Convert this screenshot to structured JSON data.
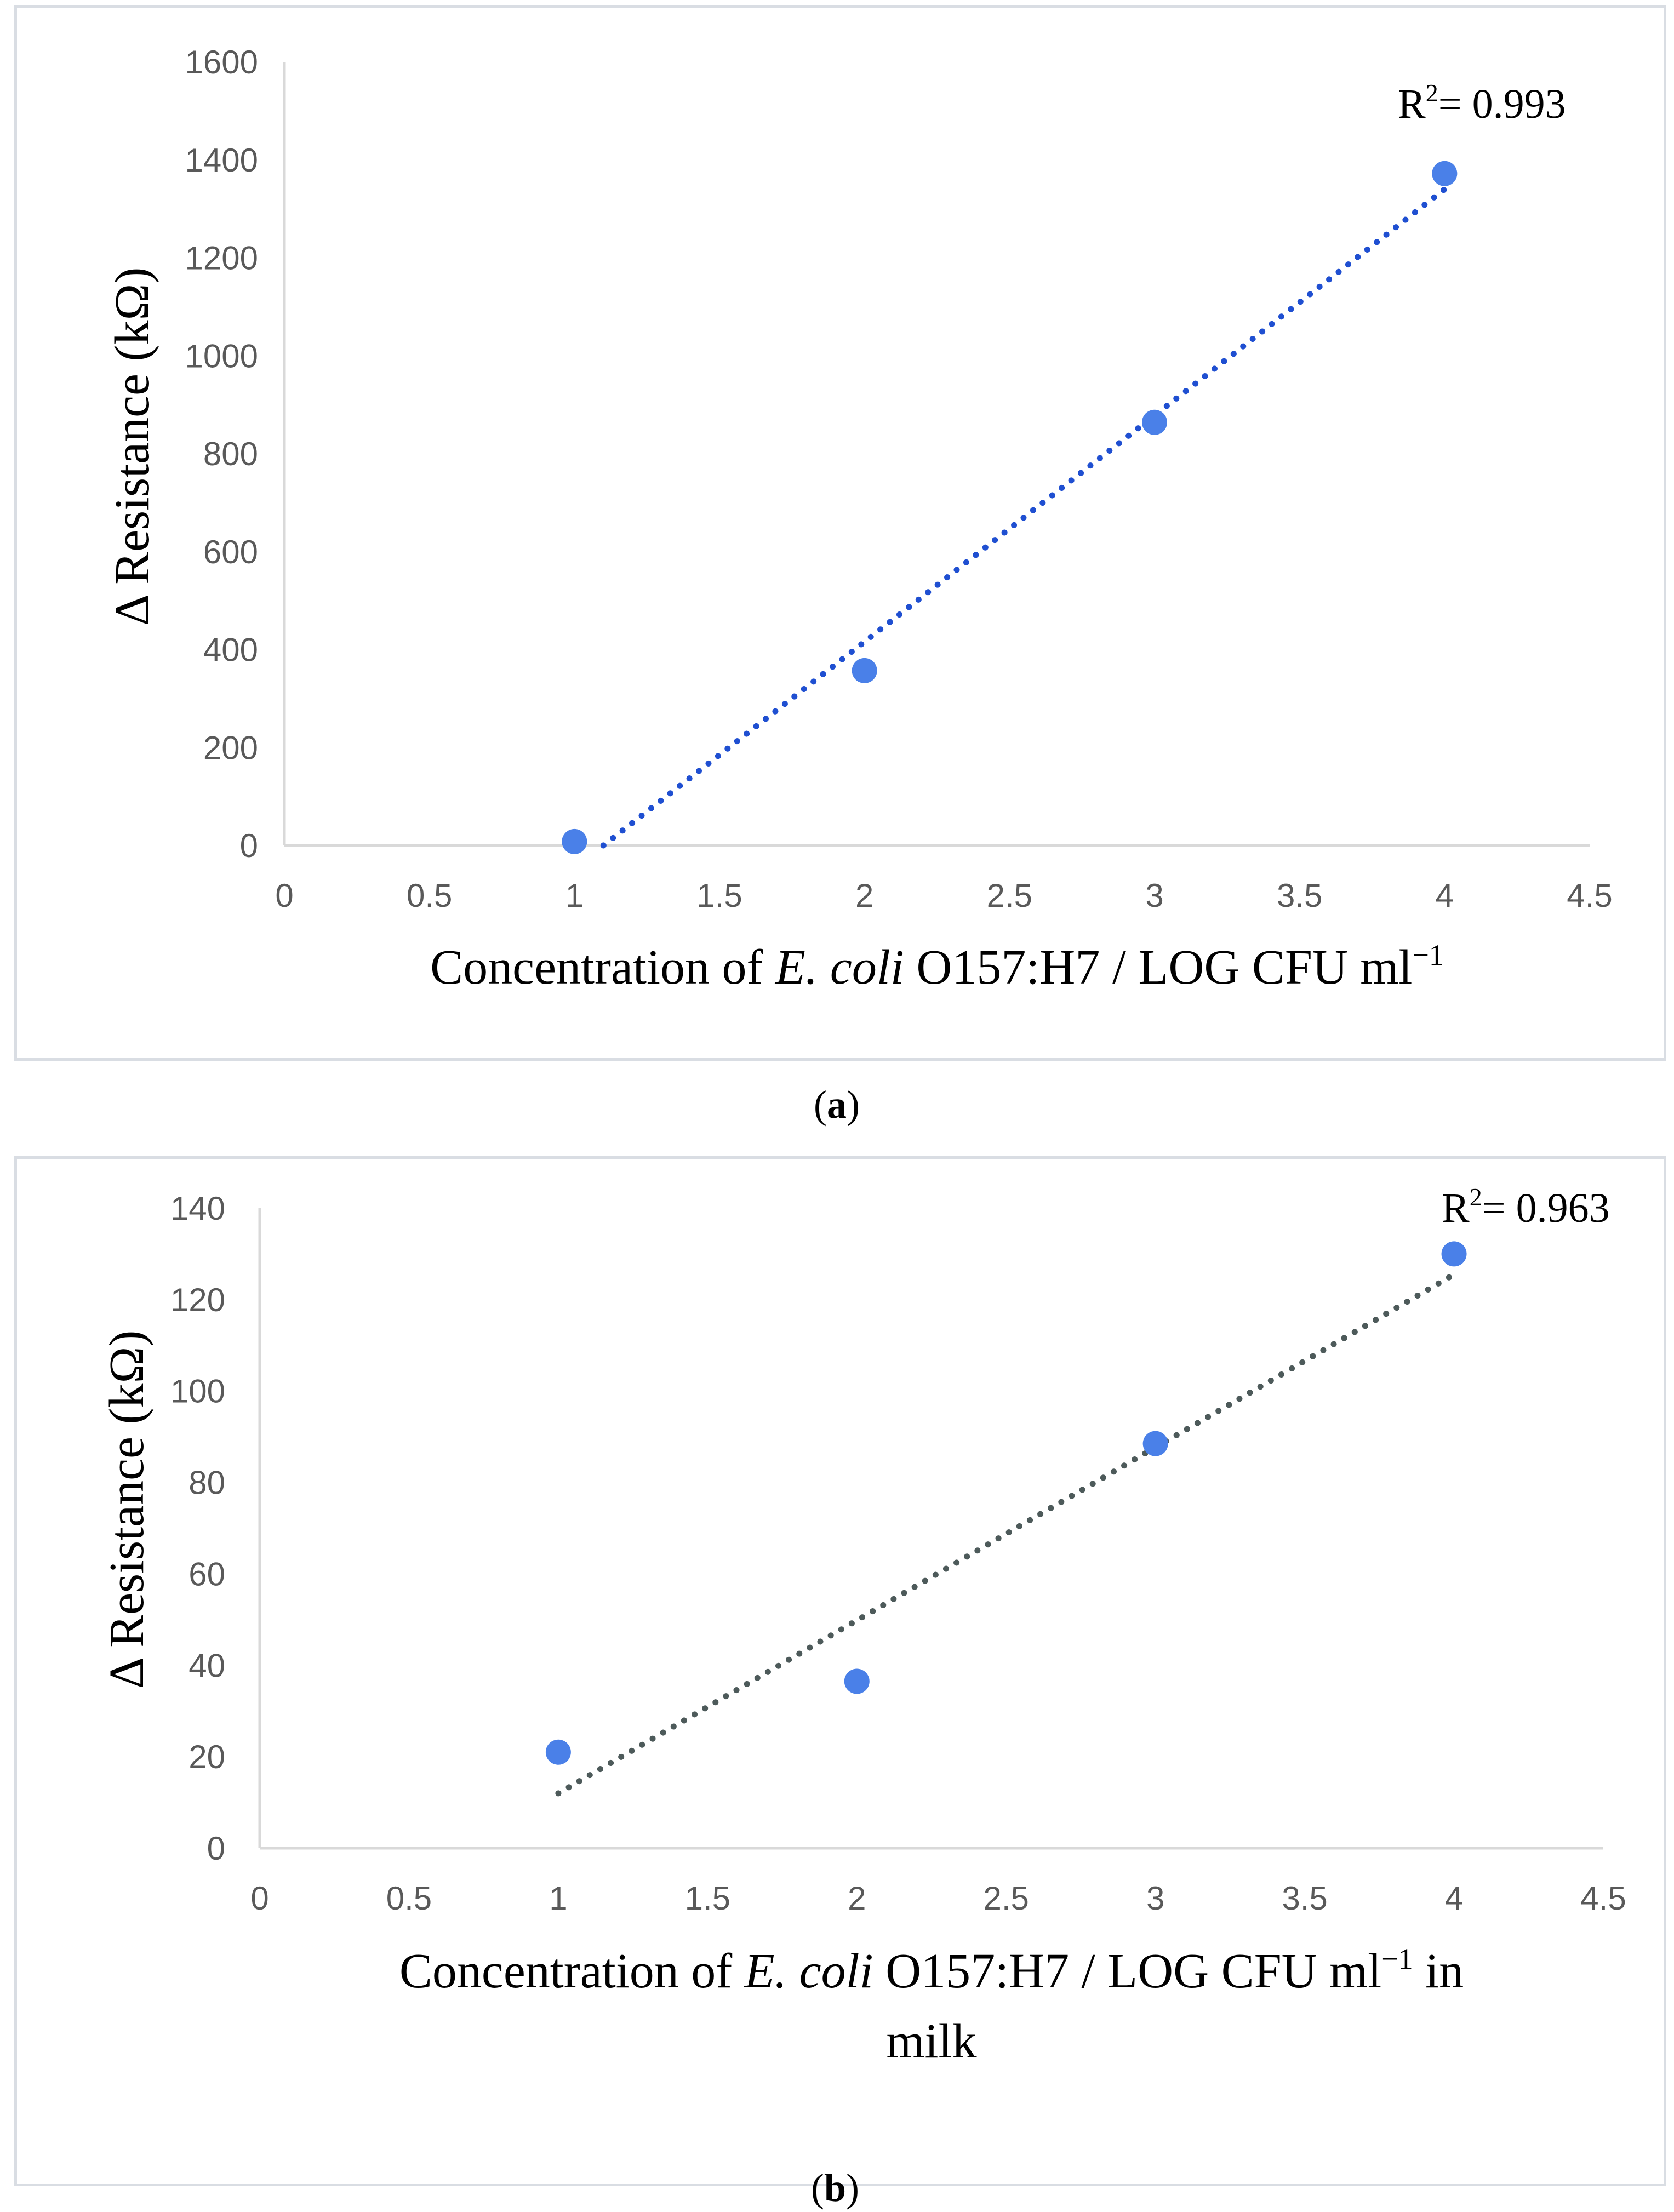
{
  "chart_data": [
    {
      "type": "scatter",
      "panel": "a",
      "caption_letter": "a",
      "ylabel": "Δ Resistance (kΩ)",
      "xlabel_parts": {
        "pre": "Concentration of ",
        "italic": "E. coli",
        "post": " O157:H7 / LOG CFU ml",
        "sup": "−1",
        "tail": ""
      },
      "xlim": [
        0,
        4.5
      ],
      "ylim": [
        0,
        1600
      ],
      "xticks": [
        0,
        0.5,
        1,
        1.5,
        2,
        2.5,
        3,
        3.5,
        4,
        4.5
      ],
      "yticks": [
        0,
        200,
        400,
        600,
        800,
        1000,
        1200,
        1400,
        1600
      ],
      "x": [
        1,
        2,
        3,
        4
      ],
      "y": [
        8,
        357,
        864,
        1372
      ],
      "trendline": {
        "type": "linear",
        "x": [
          1.1,
          4
        ],
        "y": [
          0,
          1340
        ],
        "style": "dotted"
      },
      "r2_label": {
        "pre": "R",
        "sup": "2",
        "post": "= 0.993"
      },
      "colors": {
        "point": "#4a80e8",
        "trend": "#1f4fd1",
        "axis": "#d9d9d9"
      }
    },
    {
      "type": "scatter",
      "panel": "b",
      "caption_letter": "b",
      "ylabel": "Δ Resistance (kΩ)",
      "xlabel_parts": {
        "pre": "Concentration of ",
        "italic": "E. coli",
        "post": " O157:H7 / LOG CFU ml",
        "sup": "−1",
        "tail": " in"
      },
      "xlabel_line2": "milk",
      "xlim": [
        0,
        4.5
      ],
      "ylim": [
        0,
        140
      ],
      "xticks": [
        0,
        0.5,
        1,
        1.5,
        2,
        2.5,
        3,
        3.5,
        4,
        4.5
      ],
      "yticks": [
        0,
        20,
        40,
        60,
        80,
        100,
        120,
        140
      ],
      "x": [
        1,
        2,
        3,
        4
      ],
      "y": [
        21,
        36.5,
        88.5,
        130
      ],
      "trendline": {
        "type": "linear",
        "x": [
          1,
          4
        ],
        "y": [
          12,
          125.5
        ],
        "style": "dotted"
      },
      "r2_label": {
        "pre": "R",
        "sup": "2",
        "post": "= 0.963"
      },
      "colors": {
        "point": "#4a80e8",
        "trend": "#4d5a5a",
        "axis": "#d9d9d9"
      }
    }
  ]
}
